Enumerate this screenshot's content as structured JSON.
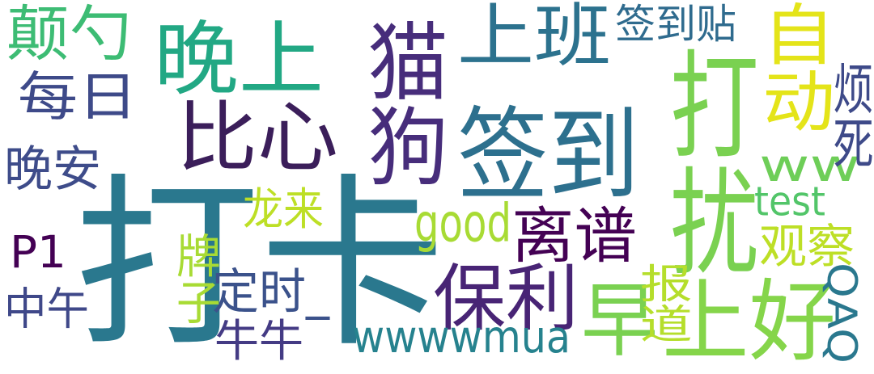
{
  "cloud": {
    "words": [
      {
        "text": "打卡",
        "color": "#2a788e",
        "vertical": false
      },
      {
        "text": "签到",
        "color": "#2d708e",
        "vertical": false
      },
      {
        "text": "打扰",
        "color": "#7ad151",
        "vertical": true
      },
      {
        "text": "晚上",
        "color": "#22a884",
        "vertical": false
      },
      {
        "text": "上班",
        "color": "#2c728e",
        "vertical": false
      },
      {
        "text": "猫狗",
        "color": "#472d7b",
        "vertical": true
      },
      {
        "text": "比心",
        "color": "#3b1e5a",
        "vertical": false
      },
      {
        "text": "上好",
        "color": "#85d54a",
        "vertical": false
      },
      {
        "text": "早",
        "color": "#7ad151",
        "vertical": false
      },
      {
        "text": "保利",
        "color": "#482475",
        "vertical": false
      },
      {
        "text": "离谱",
        "color": "#440154",
        "vertical": false
      },
      {
        "text": "每日",
        "color": "#3e4a89",
        "vertical": false
      },
      {
        "text": "颠勺",
        "color": "#3dbc74",
        "vertical": false
      },
      {
        "text": "自动",
        "color": "#e4e419",
        "vertical": true
      },
      {
        "text": "ww",
        "color": "#6ece58",
        "vertical": false
      },
      {
        "text": "wwwwmua",
        "color": "#26828e",
        "vertical": false
      },
      {
        "text": "签到贴",
        "color": "#2f6b8e",
        "vertical": false
      },
      {
        "text": "牛牛",
        "color": "#443b84",
        "vertical": false
      },
      {
        "text": "定时_",
        "color": "#3b528b",
        "vertical": false
      },
      {
        "text": "晚安",
        "color": "#3e4c8a",
        "vertical": false
      },
      {
        "text": "观察",
        "color": "#bddf26",
        "vertical": false
      },
      {
        "text": "good",
        "color": "#a8db34",
        "vertical": false
      },
      {
        "text": "P1",
        "color": "#440154",
        "vertical": false
      },
      {
        "text": "中午",
        "color": "#3f4889",
        "vertical": false
      },
      {
        "text": "test",
        "color": "#52c569",
        "vertical": false
      },
      {
        "text": "龙来",
        "color": "#bddf26",
        "vertical": false
      },
      {
        "text": "烦死",
        "color": "#3e4a89",
        "vertical": true
      },
      {
        "text": "报道",
        "color": "#b5de2b",
        "vertical": true
      },
      {
        "text": "牌子",
        "color": "#a8db34",
        "vertical": true
      },
      {
        "text": "QAQ",
        "color": "#2a788e",
        "vertical": true
      }
    ]
  }
}
